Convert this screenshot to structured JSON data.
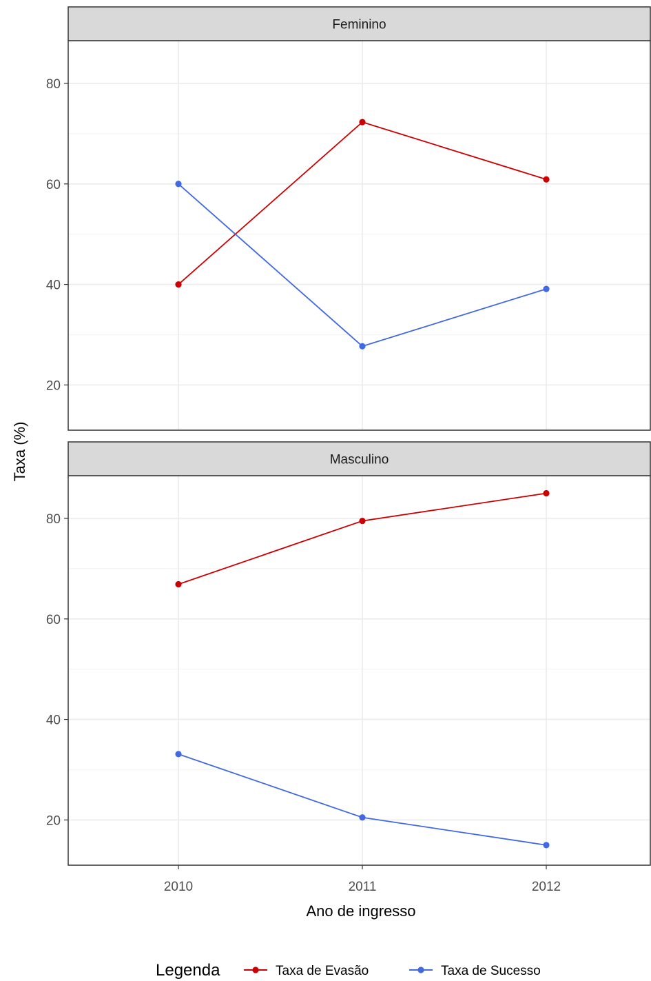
{
  "chart_data": {
    "type": "line",
    "facets": [
      {
        "name": "Feminino",
        "series": [
          {
            "name": "Taxa de Evasão",
            "values": [
              40,
              72.3,
              60.9
            ]
          },
          {
            "name": "Taxa de Sucesso",
            "values": [
              60,
              27.7,
              39.1
            ]
          }
        ]
      },
      {
        "name": "Masculino",
        "series": [
          {
            "name": "Taxa de Evasão",
            "values": [
              66.9,
              79.5,
              85
            ]
          },
          {
            "name": "Taxa de Sucesso",
            "values": [
              33.1,
              20.5,
              15
            ]
          }
        ]
      }
    ],
    "x": [
      "2010",
      "2011",
      "2012"
    ],
    "xlabel": "Ano de ingresso",
    "ylabel": "Taxa (%)",
    "ylim": [
      11,
      88.5
    ],
    "yticks": [
      20,
      40,
      60,
      80
    ],
    "grid": true,
    "legend": {
      "title": "Legenda",
      "position": "bottom",
      "entries": [
        "Taxa de Evasão",
        "Taxa de Sucesso"
      ]
    },
    "colors": {
      "Taxa de Evasão": "#cc0000",
      "Taxa de Sucesso": "#4169e1",
      "strip_fill": "#d9d9d9",
      "grid_major": "#ebebeb",
      "grid_minor": "#f4f4f4",
      "panel_border": "#333333",
      "axis_text": "#4d4d4d",
      "title_text": "#000000"
    }
  }
}
